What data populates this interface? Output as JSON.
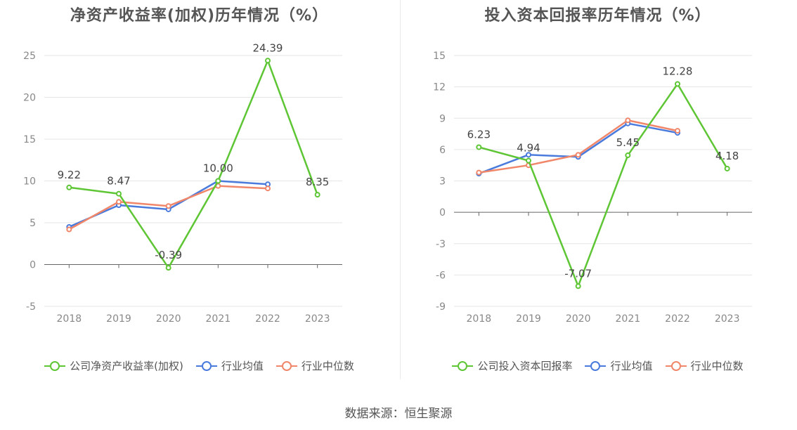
{
  "source": "数据来源：恒生聚源",
  "chart_data": [
    {
      "type": "line",
      "title": "净资产收益率(加权)历年情况（%）",
      "categories": [
        "2018",
        "2019",
        "2020",
        "2021",
        "2022",
        "2023"
      ],
      "y_ticks": [
        -5,
        0,
        5,
        10,
        15,
        20,
        25
      ],
      "ylim": [
        -5,
        25
      ],
      "grid": true,
      "legend_position": "bottom",
      "series": [
        {
          "name": "公司净资产收益率(加权)",
          "color": "#5ec635",
          "values": [
            9.22,
            8.47,
            -0.39,
            10.0,
            24.39,
            8.35
          ],
          "labels": [
            "9.22",
            "8.47",
            "-0.39",
            "10.00",
            "24.39",
            "8.35"
          ]
        },
        {
          "name": "行业均值",
          "color": "#4a7bdc",
          "values": [
            4.5,
            7.1,
            6.6,
            10.0,
            9.6,
            null
          ]
        },
        {
          "name": "行业中位数",
          "color": "#f0876a",
          "values": [
            4.2,
            7.5,
            7.0,
            9.4,
            9.1,
            null
          ]
        }
      ]
    },
    {
      "type": "line",
      "title": "投入资本回报率历年情况（%）",
      "categories": [
        "2018",
        "2019",
        "2020",
        "2021",
        "2022",
        "2023"
      ],
      "y_ticks": [
        -9,
        -6,
        -3,
        0,
        3,
        6,
        9,
        12,
        15
      ],
      "ylim": [
        -9,
        15
      ],
      "grid": true,
      "legend_position": "bottom",
      "series": [
        {
          "name": "公司投入资本回报率",
          "color": "#5ec635",
          "values": [
            6.23,
            4.94,
            -7.07,
            5.45,
            12.28,
            4.18
          ],
          "labels": [
            "6.23",
            "4.94",
            "-7.07",
            "5.45",
            "12.28",
            "4.18"
          ]
        },
        {
          "name": "行业均值",
          "color": "#4a7bdc",
          "values": [
            3.7,
            5.5,
            5.3,
            8.5,
            7.6,
            null
          ]
        },
        {
          "name": "行业中位数",
          "color": "#f0876a",
          "values": [
            3.8,
            4.5,
            5.5,
            8.8,
            7.8,
            null
          ]
        }
      ]
    }
  ]
}
